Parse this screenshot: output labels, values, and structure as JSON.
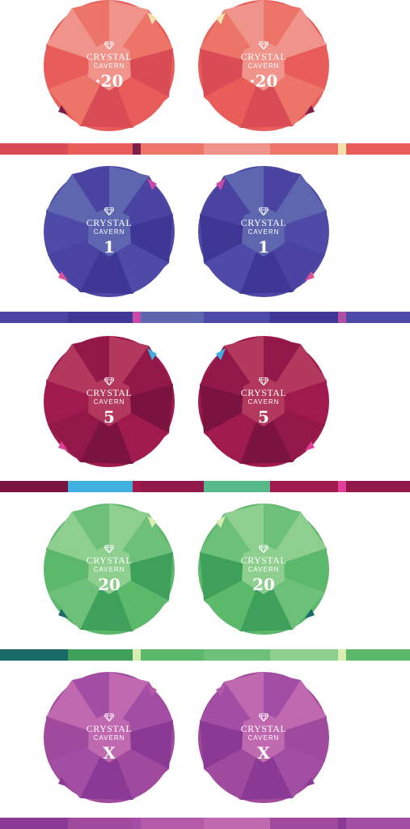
{
  "brand": {
    "line1": "CRYSTAL",
    "line2": "CAVERN"
  },
  "chips": [
    {
      "value": "·20",
      "colors": {
        "base": "#e85d5a",
        "light": "#f0938a",
        "mid": "#ec7469",
        "dark": "#d94c55",
        "accentA": "#f2e2ae",
        "accentB": "#7a1f4a"
      },
      "stripe": [
        "#d94c55",
        "#e85d5a",
        "#7a1f4a",
        "#ec7469",
        "#f0938a",
        "#ec7469",
        "#f2e2ae",
        "#e85d5a"
      ]
    },
    {
      "value": "1",
      "colors": {
        "base": "#4f4aa8",
        "light": "#5f66b0",
        "mid": "#4a43a2",
        "dark": "#3f3796",
        "accentA": "#c94aa8",
        "accentB": "#e0509a"
      },
      "stripe": [
        "#4a43a2",
        "#3f3796",
        "#c94aa8",
        "#5f66b0",
        "#4f4aa8",
        "#3f3796",
        "#b150a3",
        "#4f4aa8"
      ]
    },
    {
      "value": "5",
      "colors": {
        "base": "#a01a4e",
        "light": "#b2385e",
        "mid": "#93184a",
        "dark": "#7a1340",
        "accentA": "#3fb0e0",
        "accentB": "#e0409a"
      },
      "stripe": [
        "#7a1340",
        "#3fb0e0",
        "#a01a4e",
        "#93184a",
        "#57b88a",
        "#a01a4e",
        "#e0409a",
        "#93184a"
      ]
    },
    {
      "value": "20",
      "colors": {
        "base": "#5cb86a",
        "light": "#8ecf8f",
        "mid": "#6cc07a",
        "dark": "#3fa05c",
        "accentA": "#d8edb0",
        "accentB": "#1a6a6a"
      },
      "stripe": [
        "#1a6a6a",
        "#3fa05c",
        "#d8edb0",
        "#5cb86a",
        "#6cc07a",
        "#8ecf8f",
        "#d8edb0",
        "#5cb86a"
      ]
    },
    {
      "value": "X",
      "colors": {
        "base": "#a04a9e",
        "light": "#c068b0",
        "mid": "#a24ea4",
        "dark": "#8a3a94",
        "accentA": "#b55aa8",
        "accentB": "#8a3a94"
      },
      "stripe": [
        "#8a3a94",
        "#a04a9e",
        "#a24ea4",
        "#b55aa8",
        "#c068b0",
        "#a04a9e",
        "#8a3a94",
        "#a24ea4"
      ]
    }
  ]
}
